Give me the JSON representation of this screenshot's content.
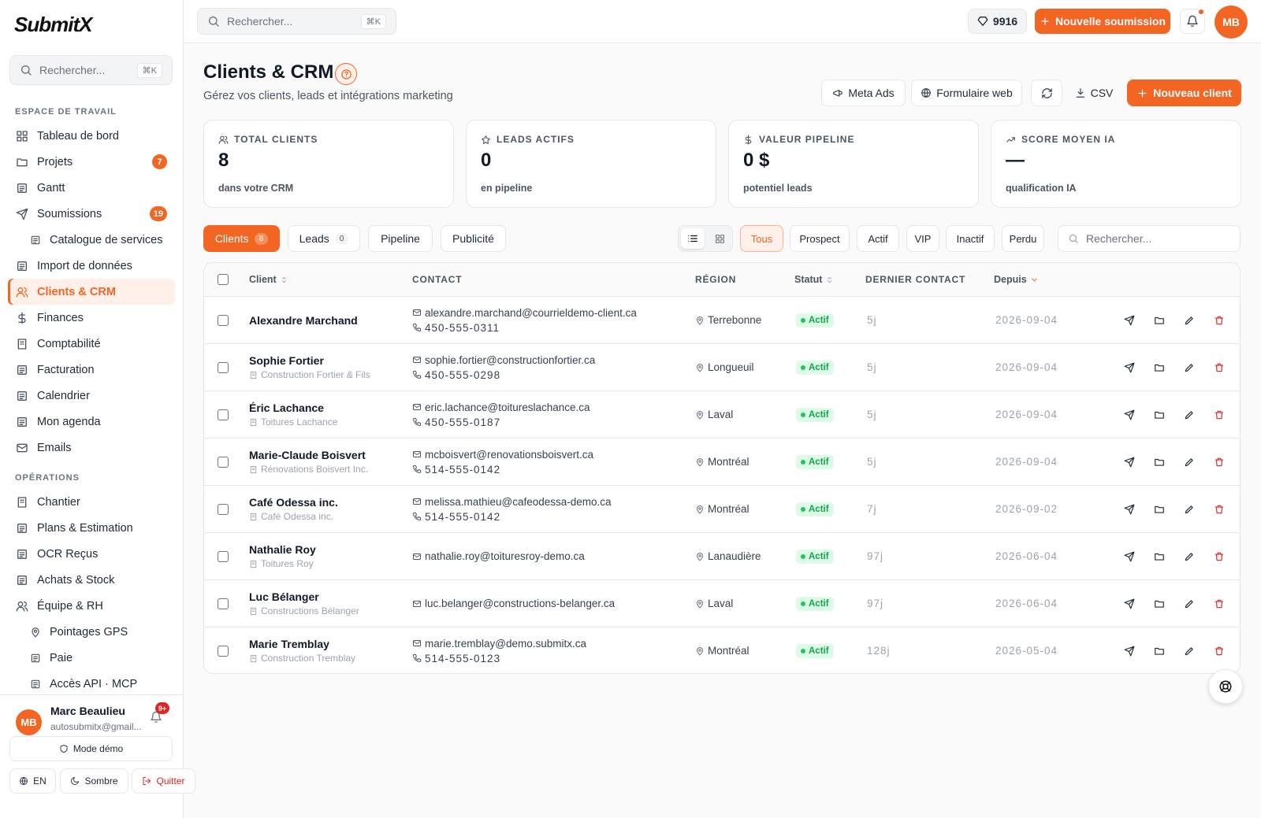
{
  "header": {
    "search": "Rechercher...",
    "shortcut": "⌘K",
    "credits": 9916,
    "new_submission": "Nouvelle soumission",
    "avatar": "MB"
  },
  "sidebar": {
    "logo": "SubmitX",
    "search": "Rechercher...",
    "shortcut": "⌘K",
    "sections": [
      {
        "title": "ESPACE DE TRAVAIL",
        "items": [
          {
            "label": "Tableau de bord"
          },
          {
            "label": "Projets",
            "badge": 7
          },
          {
            "label": "Gantt"
          },
          {
            "label": "Soumissions",
            "badge": 19
          },
          {
            "label": "Catalogue de services",
            "sub": true
          },
          {
            "label": "Import de données"
          },
          {
            "label": "Clients & CRM",
            "active": true
          },
          {
            "label": "Finances"
          },
          {
            "label": "Comptabilité"
          },
          {
            "label": "Facturation"
          },
          {
            "label": "Calendrier"
          },
          {
            "label": "Mon agenda"
          },
          {
            "label": "Emails"
          }
        ]
      },
      {
        "title": "OPÉRATIONS",
        "items": [
          {
            "label": "Chantier"
          },
          {
            "label": "Plans & Estimation"
          },
          {
            "label": "OCR Reçus"
          },
          {
            "label": "Achats & Stock"
          },
          {
            "label": "Équipe & RH"
          },
          {
            "label": "Pointages GPS",
            "sub": true
          },
          {
            "label": "Paie",
            "sub": true
          },
          {
            "label": "Accès API · MCP",
            "sub": true
          }
        ]
      }
    ],
    "user": {
      "initials": "MB",
      "name": "Marc Beaulieu",
      "email": "autosubmitx@gmail...",
      "notifications": "9+"
    },
    "demo": "Mode démo",
    "buttons": [
      "EN",
      "Sombre",
      "Quitter"
    ]
  },
  "main": {
    "title": "Clients & CRM",
    "subtitle": "Gérez vos clients, leads et intégrations marketing",
    "actions": [
      "Meta Ads",
      "Formulaire web",
      "CSV"
    ],
    "primary_action": "Nouveau client",
    "stats": [
      {
        "label": "TOTAL CLIENTS",
        "value": 8,
        "note": "dans votre CRM"
      },
      {
        "label": "LEADS ACTIFS",
        "value": 0,
        "note": "en pipeline"
      },
      {
        "label": "VALEUR PIPELINE",
        "value": "0 $",
        "note": "potentiel leads"
      },
      {
        "label": "SCORE MOYEN IA",
        "value": "—",
        "note": "qualification IA"
      }
    ],
    "tabs": [
      {
        "label": "Clients",
        "count": 8,
        "active": true
      },
      {
        "label": "Leads",
        "count": 0
      },
      {
        "label": "Pipeline"
      },
      {
        "label": "Publicité"
      }
    ],
    "filters": [
      "Tous",
      "Prospect",
      "Actif",
      "VIP",
      "Inactif",
      "Perdu"
    ],
    "filter_search": "Rechercher...",
    "table": {
      "columns": [
        "Client",
        "CONTACT",
        "RÉGION",
        "Statut",
        "DERNIER CONTACT",
        "Depuis"
      ],
      "rows": [
        {
          "name": "Alexandre Marchand",
          "email": "alexandre.marchand@courrieldemo-client.ca",
          "phone": "450-555-0311",
          "region": "Terrebonne",
          "status": "Actif",
          "last": "5j",
          "since": "2026-09-04"
        },
        {
          "name": "Sophie Fortier",
          "company": "Construction Fortier & Fils",
          "email": "sophie.fortier@constructionfortier.ca",
          "phone": "450-555-0298",
          "region": "Longueuil",
          "status": "Actif",
          "last": "5j",
          "since": "2026-09-04"
        },
        {
          "name": "Éric Lachance",
          "company": "Toitures Lachance",
          "email": "eric.lachance@toitureslachance.ca",
          "phone": "450-555-0187",
          "region": "Laval",
          "status": "Actif",
          "last": "5j",
          "since": "2026-09-04"
        },
        {
          "name": "Marie-Claude Boisvert",
          "company": "Rénovations Boisvert Inc.",
          "email": "mcboisvert@renovationsboisvert.ca",
          "phone": "514-555-0142",
          "region": "Montréal",
          "status": "Actif",
          "last": "5j",
          "since": "2026-09-04"
        },
        {
          "name": "Café Odessa inc.",
          "company": "Café Odessa inc.",
          "email": "melissa.mathieu@cafeodessa-demo.ca",
          "phone": "514-555-0142",
          "region": "Montréal",
          "status": "Actif",
          "last": "7j",
          "since": "2026-09-02"
        },
        {
          "name": "Nathalie Roy",
          "company": "Toitures Roy",
          "email": "nathalie.roy@toituresroy-demo.ca",
          "region": "Lanaudière",
          "status": "Actif",
          "last": "97j",
          "since": "2026-06-04"
        },
        {
          "name": "Luc Bélanger",
          "company": "Constructions Bélanger",
          "email": "luc.belanger@constructions-belanger.ca",
          "region": "Laval",
          "status": "Actif",
          "last": "97j",
          "since": "2026-06-04"
        },
        {
          "name": "Marie Tremblay",
          "company": "Construction Tremblay",
          "email": "marie.tremblay@demo.submitx.ca",
          "phone": "514-555-0123",
          "region": "Montréal",
          "status": "Actif",
          "last": "128j",
          "since": "2026-05-04"
        }
      ]
    }
  }
}
